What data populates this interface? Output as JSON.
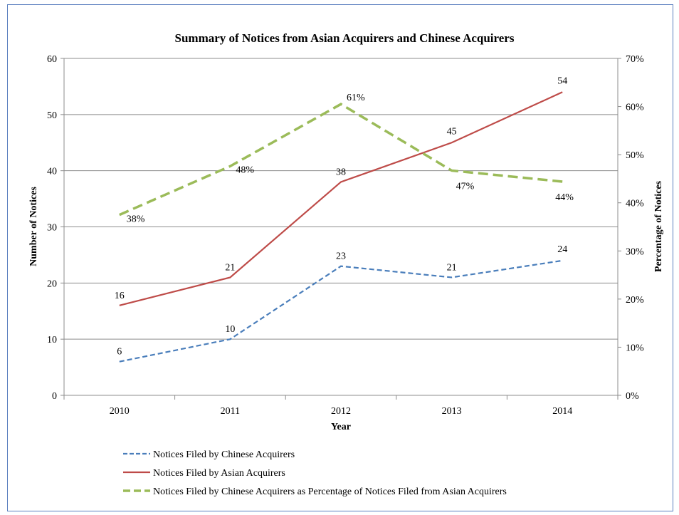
{
  "chart_data": {
    "type": "line",
    "title": "Summary  of Notices from Asian Acquirers  and Chinese Acquirers",
    "xlabel": "Year",
    "ylabel": "Number of Notices",
    "y2label": "Percentage of Notices",
    "categories": [
      "2010",
      "2011",
      "2012",
      "2013",
      "2014"
    ],
    "ylim": [
      0,
      60
    ],
    "yticks": [
      "0",
      "10",
      "20",
      "30",
      "40",
      "50",
      "60"
    ],
    "y2lim": [
      0,
      70
    ],
    "y2ticks": [
      "0%",
      "10%",
      "20%",
      "30%",
      "40%",
      "50%",
      "60%",
      "70%"
    ],
    "grid": true,
    "legend_position": "bottom",
    "series": [
      {
        "name": "Notices Filed by Chinese Acquirers",
        "axis": "left",
        "values": [
          6,
          10,
          23,
          21,
          24
        ],
        "labels": [
          "6",
          "10",
          "23",
          "21",
          "24"
        ],
        "color": "#4a7ebb",
        "style": "dashed"
      },
      {
        "name": "Notices Filed by Asian Acquirers",
        "axis": "left",
        "values": [
          16,
          21,
          38,
          45,
          54
        ],
        "labels": [
          "16",
          "21",
          "38",
          "45",
          "54"
        ],
        "color": "#be4b48",
        "style": "solid"
      },
      {
        "name": "Notices Filed by Chinese Acquirers as Percentage of Notices Filed from Asian Acquirers",
        "axis": "right",
        "values": [
          37.5,
          47.6,
          60.5,
          46.7,
          44.4
        ],
        "labels": [
          "38%",
          "48%",
          "61%",
          "47%",
          "44%"
        ],
        "color": "#9bbb59",
        "style": "long-dashed"
      }
    ]
  }
}
